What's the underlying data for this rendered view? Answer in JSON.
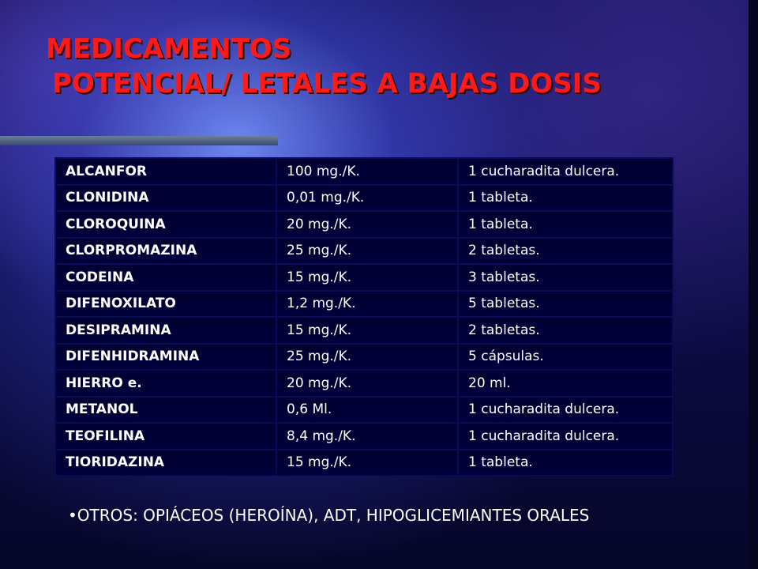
{
  "title": {
    "line1": "MEDICAMENTOS",
    "line2": "POTENCIAL/ LETALES A BAJAS DOSIS"
  },
  "table": {
    "rows": [
      {
        "drug": "ALCANFOR",
        "dose": "100 mg./K.",
        "equivalent": "1 cucharadita dulcera."
      },
      {
        "drug": "CLONIDINA",
        "dose": "0,01 mg./K.",
        "equivalent": "1 tableta."
      },
      {
        "drug": "CLOROQUINA",
        "dose": "20 mg./K.",
        "equivalent": "1 tableta."
      },
      {
        "drug": "CLORPROMAZINA",
        "dose": "25 mg./K.",
        "equivalent": "2 tabletas."
      },
      {
        "drug": "CODEINA",
        "dose": "15 mg./K.",
        "equivalent": "3 tabletas."
      },
      {
        "drug": "DIFENOXILATO",
        "dose": "1,2 mg./K.",
        "equivalent": "5 tabletas."
      },
      {
        "drug": "DESIPRAMINA",
        "dose": "15 mg./K.",
        "equivalent": "2 tabletas."
      },
      {
        "drug": "DIFENHIDRAMINA",
        "dose": "25 mg./K.",
        "equivalent": "5 cápsulas."
      },
      {
        "drug": "HIERRO e.",
        "dose": "20 mg./K.",
        "equivalent": "20 ml."
      },
      {
        "drug": "METANOL",
        "dose": "0,6 Ml.",
        "equivalent": "1 cucharadita dulcera."
      },
      {
        "drug": "TEOFILINA",
        "dose": "8,4 mg./K.",
        "equivalent": "1 cucharadita dulcera."
      },
      {
        "drug": "TIORIDAZINA",
        "dose": "15 mg./K.",
        "equivalent": "1 tableta."
      }
    ]
  },
  "footnote": "•OTROS: OPIÁCEOS (HEROÍNA), ADT, HIPOGLICEMIANTES ORALES",
  "colors": {
    "title": "#ff1a1a",
    "cell_background": "#000033",
    "cell_border": "#0a0a55",
    "text": "#ffffff"
  }
}
